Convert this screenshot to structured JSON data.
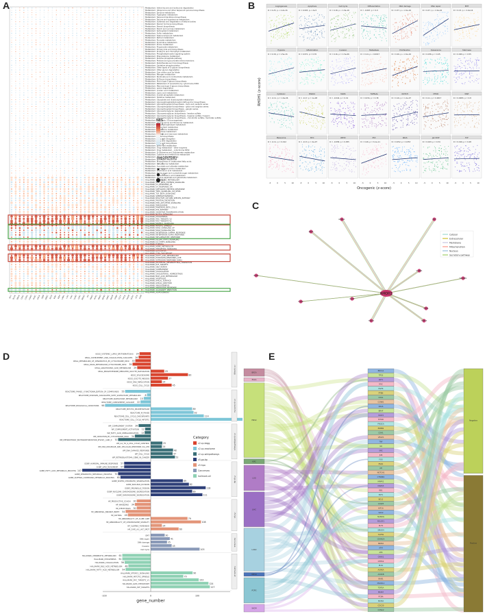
{
  "panels": {
    "a": "A",
    "b": "B",
    "c": "C",
    "d": "D",
    "e": "E"
  },
  "panel_a": {
    "legend": {
      "nes_title": "NES",
      "nes_ticks": [
        "4",
        "2",
        "0",
        "-2",
        "-4"
      ],
      "size_title": "-log10(FDR)",
      "size_ticks": [
        "0",
        "0.5",
        "1.0",
        "1.5"
      ]
    },
    "columns": [
      "ACC",
      "BLCA",
      "BRCA",
      "CESC",
      "CHOL",
      "COAD",
      "DLBC",
      "ESCA",
      "GBM",
      "HNSC",
      "KICH",
      "KIRC",
      "KIRP",
      "LAML",
      "LGG",
      "LIHC",
      "LUAD",
      "LUSC",
      "MESO",
      "OV",
      "PAAD",
      "PCPG",
      "PRAD",
      "READ",
      "SARC",
      "SKCM",
      "STAD",
      "TGCT",
      "THCA",
      "THYM",
      "UCEC",
      "UCS",
      "UVM"
    ],
    "rows": [
      "Metabolism: Valine leucine and isoleucine degradation",
      "Metabolism: Ubiquinone and other terpenoid quinone biosynthesis",
      "Metabolism: Tyrosine metabolism",
      "Metabolism: Tryptophan metabolism",
      "Metabolism: Terpenoid backbone biosynthesis",
      "Metabolism: Taurine and hypotaurine metabolism",
      "Metabolism: Synthesis and degradation of ketone bodies",
      "Metabolism: Steroid hormone biosynthesis",
      "Metabolism: Steroid biosynthesis",
      "Metabolism: Starch and sucrose metabolism",
      "Metabolism: Sphingolipid metabolism",
      "Metabolism: Sulfur metabolism",
      "Metabolism: Selenocompound metabolism",
      "Metabolism: Retinol metabolism",
      "Metabolism: Pyruvate metabolism",
      "Metabolism: Pyrimidine metabolism",
      "Metabolism: Purine metabolism",
      "Metabolism: Propanoate metabolism",
      "Metabolism: Primary bile acid biosynthesis",
      "Metabolism: Porphyrin and chlorophyll metabolism",
      "Metabolism: Phosphatidylinositol signaling system",
      "Metabolism: Phenylalanine metabolism",
      "Metabolism: Pentose phosphate pathway",
      "Metabolism: Pentose and glucuronate interconversions",
      "Metabolism: Pantothenate and CoA biosynthesis",
      "Metabolism: Oxidative phosphorylation",
      "Metabolism: Other types of O-glycan biosynthesis",
      "Metabolism: Other glycan degradation",
      "Metabolism: One carbon pool by folate",
      "Metabolism: Nitrogen metabolism",
      "Metabolism: Nicotinate and nicotinamide metabolism",
      "Metabolism: N-Glycan biosynthesis",
      "Metabolism: Mucin type O-glycan biosynthesis",
      "Metabolism: Metabolism of xenobiotics by cytochrome P450",
      "Metabolism: Mannose type O-glycan biosynthesis",
      "Metabolism: Lysine degradation",
      "Metabolism: Linoleic acid metabolism",
      "Metabolism: Lipoic acid metabolism",
      "Metabolism: Inositol phosphate metabolism",
      "Metabolism: Histidine metabolism",
      "Metabolism: Glyoxylate and dicarboxylate metabolism",
      "Metabolism: Glycosylphosphatidylinositol (GPI)-anchor biosynthesis",
      "Metabolism: Glycosphingolipid biosynthesis - lacto and neolacto series",
      "Metabolism: Glycosphingolipid biosynthesis - globo and isoglobo series",
      "Metabolism: Glycosphingolipid biosynthesis - ganglio series",
      "Metabolism: Glycosaminoglycan degradation",
      "Metabolism: Glycosaminoglycan biosynthesis - keratan sulfate",
      "Metabolism: Glycosaminoglycan biosynthesis - heparan sulfate / heparin",
      "Metabolism: Glycosaminoglycan biosynthesis - chondroitin sulfate / dermatan sulfate",
      "Metabolism: Glycolysis / Gluconeogenesis",
      "Metabolism: Glycine serine and threonine metabolism",
      "Metabolism: Glycerophospholipid metabolism",
      "Metabolism: Glycerolipid metabolism",
      "Metabolism: Glutathione metabolism",
      "Metabolism: Galactose metabolism",
      "Metabolism: Fructose and mannose metabolism",
      "Metabolism: Folate biosynthesis",
      "Metabolism: Fatty acid elongation",
      "Metabolism: Fatty acid degradation",
      "Metabolism: Fatty acid biosynthesis",
      "Metabolism: Ether lipid metabolism",
      "Metabolism: Drug metabolism - other enzymes",
      "Metabolism: Drug metabolism - cytochrome P450",
      "Metabolism: D-Glutamine and D-glutamate metabolism",
      "Metabolism: Cysteine and methionine metabolism",
      "Metabolism: Citrate cycle (TCA cycle)",
      "Metabolism: Butanoate metabolism",
      "Metabolism: Biosynthesis of unsaturated fatty acids",
      "Metabolism: beta-Alanine metabolism",
      "Metabolism: Ascorbate and aldarate metabolism",
      "Metabolism: Arginine and proline metabolism",
      "Metabolism: Arachidonic acid metabolism",
      "Metabolism: Amino sugar and nucleotide sugar metabolism",
      "Metabolism: alpha-Linolenic acid metabolism",
      "Metabolism: Alanine aspartate and glutamate metabolism",
      "HALLMARK_XENOBIOTIC_METABOLISM",
      "HALLMARK_WNT_BETA_CATENIN_SIGNALING",
      "HALLMARK_UV_RESPONSE_UP",
      "HALLMARK_UV_RESPONSE_DN",
      "HALLMARK_UNFOLDED_PROTEIN_RESPONSE",
      "HALLMARK_TNFA_SIGNALING_VIA_NFKB",
      "HALLMARK_TGF_BETA_SIGNALING",
      "HALLMARK_SPERMATOGENESIS",
      "HALLMARK_REACTIVE_OXYGEN_SPECIES_PATHWAY",
      "HALLMARK_PROTEIN_SECRETION",
      "HALLMARK_PI3K_AKT_MTOR_SIGNALING",
      "HALLMARK_PEROXISOME",
      "HALLMARK_PANCREAS_BETA_CELLS",
      "HALLMARK_P53_PATHWAY",
      "HALLMARK_OXIDATIVE_PHOSPHORYLATION",
      "HALLMARK_NOTCH_SIGNALING",
      "HALLMARK_MYOGENESIS",
      "HALLMARK_MYC_TARGETS_V2",
      "HALLMARK_MYC_TARGETS_V1",
      "HALLMARK_MTORC1_SIGNALING",
      "HALLMARK_MITOTIC_SPINDLE",
      "HALLMARK_KRAS_SIGNALING_UP",
      "HALLMARK_KRAS_SIGNALING_DN",
      "HALLMARK_INTERFERON_GAMMA_RESPONSE",
      "HALLMARK_INTERFERON_ALPHA_RESPONSE",
      "HALLMARK_INFLAMMATORY_RESPONSE",
      "HALLMARK_IL6_JAK_STAT3_SIGNALING",
      "HALLMARK_IL2_STAT5_SIGNALING",
      "HALLMARK_HYPOXIA",
      "HALLMARK_HEME_METABOLISM",
      "HALLMARK_HEDGEHOG_SIGNALING",
      "HALLMARK_GLYCOLYSIS",
      "HALLMARK_G2M_CHECKPOINT",
      "HALLMARK_FATTY_ACID_METABOLISM",
      "HALLMARK_ESTROGEN_RESPONSE_LATE",
      "HALLMARK_ESTROGEN_RESPONSE_EARLY",
      "HALLMARK_EPITHELIAL_MESENCHYMAL_TRANSITION",
      "HALLMARK_E2F_TARGETS",
      "HALLMARK_DNA_REPAIR",
      "HALLMARK_COMPLEMENT",
      "HALLMARK_COAGULATION",
      "HALLMARK_CHOLESTEROL_HOMEOSTASIS",
      "HALLMARK_BILE_ACID_METABOLISM",
      "HALLMARK_APOPTOSIS",
      "HALLMARK_APICAL_SURFACE",
      "HALLMARK_APICAL_JUNCTION",
      "HALLMARK_ANGIOGENESIS",
      "HALLMARK_ANDROGEN_RESPONSE",
      "HALLMARK_ALLOGRAFT_REJECTION",
      "HALLMARK_ADIPOGENESIS"
    ]
  },
  "panel_b": {
    "y_label": "RHOH1 (z-score)",
    "x_label": "Oncogenic (z-score)",
    "x_ticks": [
      "-5",
      "0",
      "5",
      "10"
    ],
    "cells": [
      {
        "title": "Angiogenesis",
        "stat": "R = 0.23, p < 2.2e-16",
        "color": "#9acd32"
      },
      {
        "title": "Apoptosis",
        "stat": "R = 0.093, p < 2e-5",
        "color": "#3a6ea5"
      },
      {
        "title": "Cell Cycle",
        "stat": "R = 0.18, p < 1.9e-16",
        "color": "#6ab04c"
      },
      {
        "title": "Differentiation",
        "stat": "R = -0.067, p = 0.0",
        "color": "#1abc9c"
      },
      {
        "title": "DNA damage",
        "stat": "R = 0.37, p < 2.2e-16",
        "color": "#e17055"
      },
      {
        "title": "DNA repair",
        "stat": "R = 0.47, p < 2.2e-16",
        "color": "#74b9ff"
      },
      {
        "title": "EMT",
        "stat": "R = 0.15, p < 2.2e-16",
        "color": "#fdcb6e"
      },
      {
        "title": "Hypoxia",
        "stat": "R = 0.18, p = 1.5e-16",
        "color": "#81ecec"
      },
      {
        "title": "Inflammation",
        "stat": "R = 0.072, p = 0.76",
        "color": "#55efc4"
      },
      {
        "title": "Invasion",
        "stat": "R = 0.16, p = 1.5e-06",
        "color": "#a29bfe"
      },
      {
        "title": "Metastasis",
        "stat": "R = 0.14, p < 0.0017",
        "color": "#fab1a0"
      },
      {
        "title": "Proliferation",
        "stat": "R = 0.26, p < 2.2e-16",
        "color": "#d35400"
      },
      {
        "title": "Quiescence",
        "stat": "R = 0.036, p = 0.45",
        "color": "#00cec9"
      },
      {
        "title": "Stemness",
        "stat": "R = 0.009, p = 0.55",
        "color": "#6c5ce7"
      },
      {
        "title": "Cytotoxic",
        "stat": "R = -0.11, p = 1.6e-06",
        "color": "#48c9b0"
      },
      {
        "title": "MSKCC",
        "stat": "R = -0.17, p = 1e-08",
        "color": "#c0ca33"
      },
      {
        "title": "MAPK",
        "stat": "R = -0.044, p = 0.19",
        "color": "#5f27cd"
      },
      {
        "title": "TGFBeta",
        "stat": "R = 0.034, p = 0.38",
        "color": "#8e44ad"
      },
      {
        "title": "NOTCH",
        "stat": "R = 0.16, p = 1.2e-07",
        "color": "#341f97"
      },
      {
        "title": "MTOR",
        "stat": "R = 0.11, p = 0.0017",
        "color": "#a0522d"
      },
      {
        "title": "WNT",
        "stat": "R = 0.0083, p = 0.8",
        "color": "#d4a373"
      },
      {
        "title": "Melanoma",
        "stat": "R = -0.11, p = 0.012",
        "color": "#f78fb3"
      },
      {
        "title": "MYC",
        "stat": "R = -0.13, p = 4e-07",
        "color": "#3498db"
      },
      {
        "title": "WNT2",
        "stat": "R = -0.058, p = 0.055",
        "color": "#b39ddb"
      },
      {
        "title": "P53",
        "stat": "R = 0.26, p = 6.1e-11",
        "color": "#f8a5c2"
      },
      {
        "title": "KRAS",
        "stat": "R = 0.052, p = 0.053",
        "color": "#1e90ff"
      },
      {
        "title": "Jak STAT",
        "stat": "R = 0.043, p = 0.34",
        "color": "#27ae60"
      },
      {
        "title": "TCF",
        "stat": "R = 0.016, p = 0.48",
        "color": "#4834d4"
      }
    ]
  },
  "panel_c": {
    "center": "RHOH1",
    "nodes": [
      "RHOA1",
      "NTF",
      "BAK1",
      "ZNF3",
      "FGD4",
      "CDH1",
      "STMN1",
      "TP53BP1",
      "TRP53",
      "TRAF2",
      "RAC1"
    ],
    "legend": [
      "Cytosol",
      "Extracellular",
      "Membrane",
      "Mitochondrion",
      "Nucleus",
      "Secretory pathway"
    ],
    "legend_colors": [
      "#8dd3c7",
      "#c4b000",
      "#bebada",
      "#fb8072",
      "#80b1d3",
      "#8bc34a"
    ]
  },
  "panel_d": {
    "xlabel": "gene_number",
    "xticks": [
      "-100",
      "0",
      "100"
    ],
    "legend_title": "Category",
    "categories": [
      "c2.cp.kegg",
      "c2.cp.reactome",
      "c2.cp.wikipathways",
      "c5.go.bp",
      "c5.hpo",
      "Cancersea",
      "hallmark.all"
    ],
    "colors": [
      "#d9442e",
      "#7ec6d8",
      "#3a6f77",
      "#2e3f78",
      "#e39478",
      "#8a9ab8",
      "#8fd1b4"
    ],
    "groups": [
      {
        "name": "c2.cp.kegg",
        "color": "#d9442e",
        "bars": [
          {
            "label": "KEGG_SYSTEMIC_LUPUS_ERYTHEMATOSUS",
            "value": -24
          },
          {
            "label": "KEGG_COMPLEMENT_AND_COAGULATION_CASCADES",
            "value": -26
          },
          {
            "label": "KEGG_METABOLISM_OF_XENOBIOTICS_BY_CYTOCHROME_P450",
            "value": -33
          },
          {
            "label": "KEGG_DRUG_METABOLISM_CYTOCHROME_P450",
            "value": -39
          },
          {
            "label": "KEGG_ARACHIDONIC_ACID_METABOLISM",
            "value": -29
          },
          {
            "label": "KEGG_PROGESTERONE_MEDIATED_OOCYTE_MATURATION",
            "value": 29
          },
          {
            "label": "KEGG_SPLICEOSOME",
            "value": 80
          },
          {
            "label": "KEGG_OOCYTE_MEIOSIS",
            "value": 37
          },
          {
            "label": "KEGG_DNA_REPLICATION",
            "value": 24
          },
          {
            "label": "KEGG_CELL_CYCLE",
            "value": 45
          }
        ]
      },
      {
        "name": "c2.cp.reactome",
        "color": "#7ec6d8",
        "bars": [
          {
            "label": "REACTOME_PHASE_I_FUNCTIONALIZATION_OF_COMPOUNDS",
            "value": -55
          },
          {
            "label": "REACTOME_DISEASES_ASSOCIATED_WITH_SURFACTANT_METABOLISM",
            "value": -8
          },
          {
            "label": "REACTOME_SURFACTANT_METABOLISM",
            "value": -15
          },
          {
            "label": "REACTOME_COMPLEMENT_CASCADE",
            "value": -22
          },
          {
            "label": "REACTOME_BIOLOGICAL_OXIDATIONS",
            "value": -98
          },
          {
            "label": "REACTOME_MITOTIC_PROMETAPHASE",
            "value": 89
          },
          {
            "label": "REACTOME_M_PHASE",
            "value": 92
          },
          {
            "label": "REACTOME_CELL_CYCLE_CHECKPOINTS",
            "value": 114
          },
          {
            "label": "REACTOME_CELL_CYCLE_MITOTIC",
            "value": 198
          }
        ]
      },
      {
        "name": "c2.cp.wikipathways",
        "color": "#3a6f77",
        "bars": [
          {
            "label": "WP_COMPLEMENT_SYSTEM",
            "value": -26
          },
          {
            "label": "WP_COMPLEMENT_ACTIVATION",
            "value": -12
          },
          {
            "label": "WP_FATTY_ACID_OMEGAOXIDATION",
            "value": -13
          },
          {
            "label": "WP_OXIDATION_BY_CYTOCHROME_P450",
            "value": -34
          },
          {
            "label": "WP_METAPATHWAY_BIOTRANSFORMATION_PHASE_I_AND_II",
            "value": -70
          },
          {
            "label": "WP_G1_TO_S_CELL_CYCLE_CONTROL",
            "value": 25
          },
          {
            "label": "WP_DNA_IRDAMAGE_AND_CELLULAR_RESPONSE_VIA_ATR",
            "value": 24
          },
          {
            "label": "WP_DNA_DAMAGE_RESPONSE",
            "value": 48
          },
          {
            "label": "WP_CELL_CYCLE",
            "value": 47
          },
          {
            "label": "WP_RETINOBLASTOMA_GENE_IN_CANCER",
            "value": 52
          }
        ]
      },
      {
        "name": "c5.go.bp",
        "color": "#2e3f78",
        "bars": [
          {
            "label": "GOBP_HUMORAL_IMMUNE_RESPONSE",
            "value": -57
          },
          {
            "label": "GOBP_LIPID_MOVEMENT",
            "value": -57
          },
          {
            "label": "GOBP_FATTY_ACID_METABOLIC_PROCESS",
            "value": -147
          },
          {
            "label": "GOBP_XENOBIOTIC_METABOLIC_PROCESS",
            "value": -70
          },
          {
            "label": "GOBP_OLEFINIC_COMPOUND_METABOLIC_PROCESS",
            "value": -65
          },
          {
            "label": "GOBP_SISTER_CHROMATID_SEGREGATION",
            "value": 69
          },
          {
            "label": "GOBP_NUCLEAR_DIVISION",
            "value": 82
          },
          {
            "label": "GOBP_ORGANELLE_FISSION",
            "value": 118
          },
          {
            "label": "GOBP_NUCLEAR_CHROMOSOME_SEGREGATION",
            "value": 89
          },
          {
            "label": "GOBP_CHROMOSOME_SEGREGATION",
            "value": 111
          }
        ]
      },
      {
        "name": "c5.hpo",
        "color": "#e39478",
        "bars": [
          {
            "label": "HP_PRODUCTIVE_COUGH",
            "value": -30
          },
          {
            "label": "HP_WHEEZING",
            "value": -34
          },
          {
            "label": "HP_ATELECTASIS",
            "value": -30
          },
          {
            "label": "HP_ABNORMAL_BRONCH_BIRTH",
            "value": -54
          },
          {
            "label": "HP_ASTHMA",
            "value": -49
          },
          {
            "label": "HP_ABNORMALITY_OF_CLUBF_SIZE",
            "value": 79
          },
          {
            "label": "HP_ABNORMALITY_OF_CHROMOSOME_STABILITY",
            "value": 108
          },
          {
            "label": "HP_SLOPING_FOREHEAD",
            "value": 24
          },
          {
            "label": "HP_CAFE_AU_LAIT_SPOT",
            "value": 60
          }
        ]
      },
      {
        "name": "Cancersea",
        "color": "#8a9ab8",
        "bars": [
          {
            "label": "EMT",
            "value": 30
          },
          {
            "label": "DNA repair",
            "value": 41
          },
          {
            "label": "DNA damage",
            "value": 35
          },
          {
            "label": "Invasion",
            "value": 45
          },
          {
            "label": "Cell Cycle",
            "value": 105
          }
        ]
      },
      {
        "name": "hallmark.all",
        "color": "#8fd1b4",
        "bars": [
          {
            "label": "HALLMARK_XENOBIOTIC_METABOLISM",
            "value": -61
          },
          {
            "label": "HALLMARK_MYOGENESIS",
            "value": -61
          },
          {
            "label": "HALLMARK_COAGULATION",
            "value": -56
          },
          {
            "label": "HALLMARK_BILE_ACID_METABOLISM",
            "value": -48
          },
          {
            "label": "HALLMARK_FATTY_ACID_METABOLISM",
            "value": -54
          },
          {
            "label": "HALLMARK_MTORC1_SIGNALING",
            "value": 90
          },
          {
            "label": "HALLMARK_MITOTIC_SPINDLE",
            "value": 70
          },
          {
            "label": "HALLMARK_MYC_TARGETS_V1",
            "value": 103
          },
          {
            "label": "HALLMARK_G2M_CHECKPOINT",
            "value": 124
          },
          {
            "label": "HALLMARK_E2F_TARGETS",
            "value": 127
          }
        ]
      }
    ]
  },
  "panel_e": {
    "left": [
      {
        "label": "BRCA",
        "color": "#c48b9f"
      },
      {
        "label": "ESCA",
        "color": "#e8b4c8"
      },
      {
        "label": "HNSC",
        "color": "#c6e07a"
      },
      {
        "label": "KIRC",
        "color": "#7aa874"
      },
      {
        "label": "LGG",
        "color": "#b07cc6"
      },
      {
        "label": "LIHC",
        "color": "#9b6fc4"
      },
      {
        "label": "LUAD",
        "color": "#a7d1e0"
      },
      {
        "label": "MESO",
        "color": "#4a72b8"
      },
      {
        "label": "PCPG",
        "color": "#8bc6d3"
      },
      {
        "label": "SKCM",
        "color": "#d6a6e8"
      }
    ],
    "middle": [
      "BRCA1",
      "TP53",
      "AKT1",
      "MYC",
      "EGFR",
      "PTEN",
      "CDK1",
      "CCNB1",
      "KRAS",
      "BRAF",
      "STAT3",
      "MTOR",
      "PIK3CA",
      "ERBB2",
      "CDH1",
      "VEGFA",
      "TNF",
      "IL6",
      "SRC",
      "JUN",
      "FOS",
      "ESR1",
      "AR",
      "NOTCH1",
      "CTNNB1",
      "MAPK1",
      "MAPK3",
      "RB1",
      "E2F1",
      "BCL2",
      "CASP3",
      "HIF1A",
      "SOX2",
      "NANOG",
      "POU5F1",
      "KLF4",
      "SMAD4",
      "TGFB1",
      "CDKN2A",
      "MDM2",
      "ATM",
      "ATR",
      "CHEK1",
      "CHEK2",
      "PLK1",
      "AURKA",
      "AURKB",
      "BUB1",
      "MAD2L1",
      "TOP2A",
      "MKI67",
      "PCNA",
      "MCM2",
      "CDC20",
      "CCNA2"
    ],
    "right": [
      {
        "label": "Negative",
        "color": "#bcd15a"
      },
      {
        "label": "Positive",
        "color": "#8a7a35"
      }
    ]
  }
}
